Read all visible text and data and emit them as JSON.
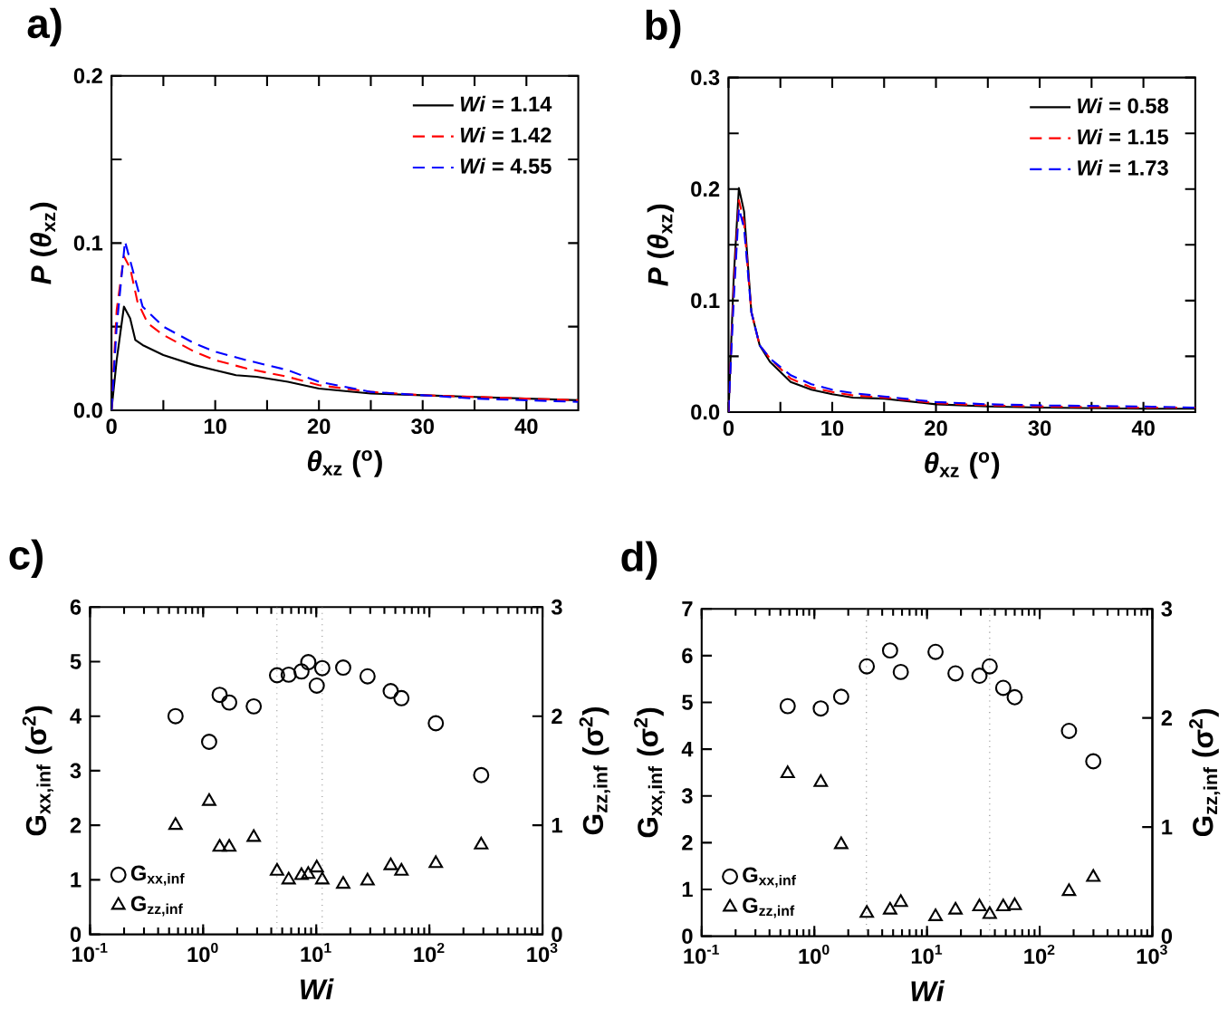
{
  "chart_data": [
    {
      "type": "line",
      "title": "a)",
      "xlabel": "*θ*$_{xz}$ ($^{o}$)",
      "ylabel": "*P* (*θ*$_{xz}$)",
      "xlim": [
        0,
        45
      ],
      "ylim": [
        0,
        0.2
      ],
      "xticks": [
        0,
        {
          "value": 5,
          "label": null
        },
        10,
        {
          "value": 15,
          "label": null
        },
        20,
        {
          "value": 25,
          "label": null
        },
        30,
        {
          "value": 35,
          "label": null
        },
        40
      ],
      "yticks": [
        {
          "value": 0,
          "label": "0.0"
        },
        {
          "value": 0.05,
          "label": null
        },
        {
          "value": 0.1,
          "label": "0.1"
        },
        {
          "value": 0.15,
          "label": null
        },
        {
          "value": 0.2,
          "label": "0.2"
        }
      ],
      "legend": "top right",
      "series": [
        {
          "name": "*Wi* = 1.14",
          "color": "#000000",
          "line_style": "solid",
          "x": [
            0,
            0.5,
            1.2,
            1.8,
            2.3,
            3,
            5,
            8,
            10,
            12,
            14,
            17,
            20,
            25,
            30,
            35,
            40,
            45
          ],
          "values": [
            0,
            0.03,
            0.062,
            0.055,
            0.042,
            0.039,
            0.033,
            0.027,
            0.024,
            0.021,
            0.02,
            0.017,
            0.013,
            0.01,
            0.009,
            0.008,
            0.007,
            0.006
          ]
        },
        {
          "name": "*Wi* = 1.42",
          "color": "#ff0000",
          "line_style": "dashed",
          "x": [
            0,
            0.5,
            1.2,
            1.8,
            2.5,
            3.5,
            5,
            8,
            10,
            13,
            17,
            20,
            25,
            30,
            35,
            40,
            45
          ],
          "values": [
            0,
            0.06,
            0.092,
            0.085,
            0.065,
            0.052,
            0.045,
            0.035,
            0.03,
            0.025,
            0.02,
            0.015,
            0.011,
            0.009,
            0.008,
            0.007,
            0.006
          ]
        },
        {
          "name": "*Wi* = 4.55",
          "color": "#0000ff",
          "line_style": "dashed",
          "x": [
            0,
            0.5,
            1.3,
            2,
            3,
            5,
            8,
            10,
            13,
            17,
            20,
            25,
            30,
            35,
            40,
            45
          ],
          "values": [
            0,
            0.05,
            0.101,
            0.085,
            0.062,
            0.05,
            0.04,
            0.035,
            0.03,
            0.024,
            0.017,
            0.011,
            0.009,
            0.007,
            0.006,
            0.005
          ]
        }
      ]
    },
    {
      "type": "line",
      "title": "b)",
      "xlabel": "*θ*$_{xz}$ ($^{o}$)",
      "ylabel": "*P* (*θ*$_{xz}$)",
      "xlim": [
        0,
        45
      ],
      "ylim": [
        0,
        0.3
      ],
      "xticks": [
        0,
        {
          "value": 5,
          "label": null
        },
        10,
        {
          "value": 15,
          "label": null
        },
        20,
        {
          "value": 25,
          "label": null
        },
        30,
        {
          "value": 35,
          "label": null
        },
        40
      ],
      "yticks": [
        {
          "value": 0,
          "label": "0.0"
        },
        {
          "value": 0.05,
          "label": null
        },
        {
          "value": 0.1,
          "label": "0.1"
        },
        {
          "value": 0.15,
          "label": null
        },
        {
          "value": 0.2,
          "label": "0.2"
        },
        {
          "value": 0.25,
          "label": null
        },
        {
          "value": 0.3,
          "label": "0.3"
        }
      ],
      "legend": "top right",
      "series": [
        {
          "name": "*Wi* = 0.58",
          "color": "#000000",
          "line_style": "solid",
          "x": [
            0,
            0.5,
            1,
            1.5,
            2.2,
            3,
            4,
            6,
            8,
            10,
            12,
            15,
            20,
            25,
            30,
            40,
            45
          ],
          "values": [
            0,
            0.12,
            0.201,
            0.18,
            0.09,
            0.06,
            0.045,
            0.027,
            0.02,
            0.016,
            0.013,
            0.012,
            0.007,
            0.005,
            0.004,
            0.003,
            0.003
          ]
        },
        {
          "name": "*Wi* = 1.15",
          "color": "#ff0000",
          "line_style": "dashed",
          "x": [
            0,
            0.5,
            1,
            1.5,
            2.2,
            3,
            4,
            6,
            8,
            10,
            12,
            15,
            20,
            25,
            30,
            40,
            45
          ],
          "values": [
            0,
            0.11,
            0.19,
            0.17,
            0.09,
            0.06,
            0.048,
            0.03,
            0.022,
            0.018,
            0.015,
            0.013,
            0.008,
            0.006,
            0.005,
            0.004,
            0.004
          ]
        },
        {
          "name": "*Wi* = 1.73",
          "color": "#0000ff",
          "line_style": "dashed",
          "x": [
            0,
            0.5,
            1,
            1.5,
            2.2,
            3,
            4,
            6,
            8,
            10,
            12,
            15,
            20,
            25,
            30,
            40,
            45
          ],
          "values": [
            0,
            0.1,
            0.183,
            0.165,
            0.09,
            0.06,
            0.048,
            0.033,
            0.025,
            0.02,
            0.017,
            0.014,
            0.009,
            0.007,
            0.006,
            0.005,
            0.004
          ]
        }
      ]
    },
    {
      "type": "scatter",
      "title": "c)",
      "xlabel": "*Wi*",
      "ylabel": "G$_{xx,inf}$ (σ$^{2}$)",
      "y2label": "G$_{zz,inf}$ (σ$^{2}$)",
      "log": "x",
      "xlim": [
        0.1,
        1000
      ],
      "ylim": [
        0,
        6
      ],
      "y2lim": [
        0,
        3
      ],
      "xticks": [
        {
          "value": 0.1,
          "label": "10$^{-1}$"
        },
        {
          "value": 1,
          "label": "10$^{0}$"
        },
        {
          "value": 10,
          "label": "10$^{1}$"
        },
        {
          "value": 100,
          "label": "10$^{2}$"
        },
        {
          "value": 1000,
          "label": "10$^{3}$"
        }
      ],
      "yticks": [
        0,
        1,
        2,
        3,
        4,
        5,
        6
      ],
      "y2ticks": [
        0,
        1,
        2,
        3
      ],
      "legend": "bottom left",
      "ref_lines": [
        {
          "axis": "x",
          "value": 4.5,
          "color": "#808080",
          "line_style": "dotted"
        },
        {
          "axis": "x",
          "value": 11.3,
          "color": "#808080",
          "line_style": "dotted"
        }
      ],
      "series": [
        {
          "name": "G$_{xx,inf}$",
          "color": "#000000",
          "marker": "circle",
          "x": [
            0.57,
            1.13,
            1.4,
            1.7,
            2.8,
            4.5,
            5.7,
            7.4,
            8.5,
            10.1,
            11.3,
            17.3,
            28.4,
            45.5,
            56.6,
            114,
            287
          ],
          "values": [
            4.0,
            3.53,
            4.39,
            4.25,
            4.18,
            4.75,
            4.76,
            4.82,
            4.99,
            4.56,
            4.88,
            4.89,
            4.73,
            4.46,
            4.33,
            3.87,
            2.92
          ]
        },
        {
          "name": "G$_{zz,inf}$",
          "color": "#000000",
          "marker": "triangle",
          "axis": "y2",
          "x": [
            0.57,
            1.13,
            1.4,
            1.7,
            2.8,
            4.5,
            5.7,
            7.4,
            8.5,
            10.1,
            11.3,
            17.3,
            28.4,
            45.5,
            56.6,
            114,
            287
          ],
          "values": [
            1.0,
            1.22,
            0.8,
            0.8,
            0.89,
            0.58,
            0.5,
            0.54,
            0.55,
            0.61,
            0.5,
            0.46,
            0.49,
            0.63,
            0.58,
            0.65,
            0.82
          ]
        }
      ]
    },
    {
      "type": "scatter",
      "title": "d)",
      "xlabel": "*Wi*",
      "ylabel": "G$_{xx,inf}$ (σ$^{2}$)",
      "y2label": "G$_{zz,inf}$ (σ$^{2}$)",
      "log": "x",
      "xlim": [
        0.1,
        1000
      ],
      "ylim": [
        0,
        7
      ],
      "y2lim": [
        0,
        3
      ],
      "xticks": [
        {
          "value": 0.1,
          "label": "10$^{-1}$"
        },
        {
          "value": 1,
          "label": "10$^{0}$"
        },
        {
          "value": 10,
          "label": "10$^{1}$"
        },
        {
          "value": 100,
          "label": "10$^{2}$"
        },
        {
          "value": 1000,
          "label": "10$^{3}$"
        }
      ],
      "yticks": [
        0,
        1,
        2,
        3,
        4,
        5,
        6,
        7
      ],
      "y2ticks": [
        0,
        1,
        2,
        3
      ],
      "legend": "bottom left",
      "ref_lines": [
        {
          "axis": "x",
          "value": 2.9,
          "color": "#808080",
          "line_style": "dotted"
        },
        {
          "axis": "x",
          "value": 36,
          "color": "#808080",
          "line_style": "dotted"
        }
      ],
      "series": [
        {
          "name": "G$_{xx,inf}$",
          "color": "#000000",
          "marker": "circle",
          "x": [
            0.58,
            1.14,
            1.73,
            2.92,
            4.7,
            5.85,
            11.9,
            17.9,
            29.2,
            36,
            47.5,
            60,
            182,
            299
          ],
          "values": [
            4.92,
            4.87,
            5.12,
            5.77,
            6.11,
            5.65,
            6.08,
            5.62,
            5.57,
            5.77,
            5.31,
            5.11,
            4.39,
            3.74
          ]
        },
        {
          "name": "G$_{zz,inf}$",
          "color": "#000000",
          "marker": "triangle",
          "axis": "y2",
          "x": [
            0.58,
            1.14,
            1.73,
            2.92,
            4.7,
            5.85,
            11.9,
            17.9,
            29.2,
            36,
            47.5,
            60,
            182,
            299
          ],
          "values": [
            1.49,
            1.41,
            0.84,
            0.21,
            0.24,
            0.31,
            0.18,
            0.24,
            0.27,
            0.2,
            0.27,
            0.28,
            0.41,
            0.54
          ]
        }
      ]
    }
  ]
}
